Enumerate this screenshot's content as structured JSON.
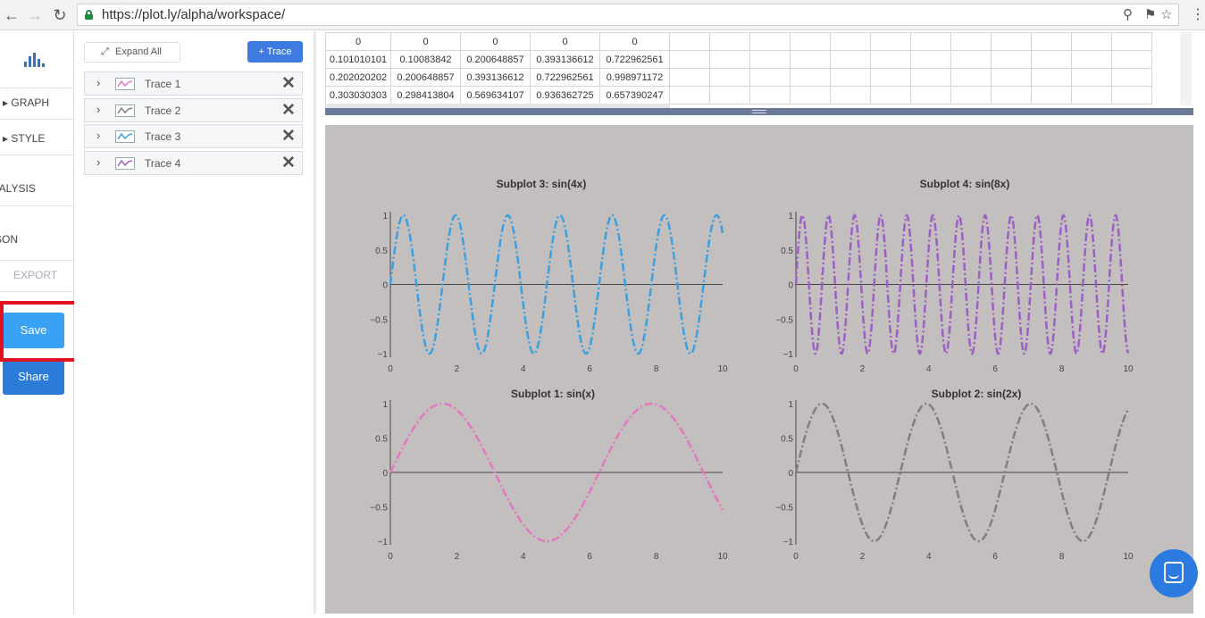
{
  "browser": {
    "url": "https://plot.ly/alpha/workspace/"
  },
  "sidebar": {
    "items": [
      {
        "label": "▸ GRAPH"
      },
      {
        "label": "▸ STYLE"
      },
      {
        "label": "ANALYSIS"
      },
      {
        "label": "JSON"
      },
      {
        "label": "EXPORT"
      }
    ],
    "save_label": "Save",
    "share_label": "Share"
  },
  "panel": {
    "expand_label": "Expand All",
    "add_trace_label": "+ Trace",
    "traces": [
      {
        "label": "Trace 1",
        "color": "#e377c2"
      },
      {
        "label": "Trace 2",
        "color": "#7f7f7f"
      },
      {
        "label": "Trace 3",
        "color": "#3aa0e0"
      },
      {
        "label": "Trace 4",
        "color": "#9b5fc6"
      }
    ]
  },
  "grid": {
    "rows": [
      [
        "0",
        "0",
        "0",
        "0",
        "0"
      ],
      [
        "0.101010101",
        "0.10083842",
        "0.200648857",
        "0.393136612",
        "0.722962561"
      ],
      [
        "0.202020202",
        "0.200648857",
        "0.393136612",
        "0.722962561",
        "0.998971172"
      ],
      [
        "0.303030303",
        "0.298413804",
        "0.569634107",
        "0.936362725",
        "0.657390247"
      ]
    ]
  },
  "chart_data": [
    {
      "type": "line",
      "title": "Subplot 3: sin(4x)",
      "function": "sin(4x)",
      "color": "#3aa0e0",
      "dash": "dashdot",
      "xlim": [
        0,
        10
      ],
      "ylim": [
        -1,
        1
      ],
      "xticks": [
        "0",
        "2",
        "4",
        "6",
        "8",
        "10"
      ],
      "yticks": [
        "1",
        "0.5",
        "0",
        "−0.5",
        "−1"
      ]
    },
    {
      "type": "line",
      "title": "Subplot 4: sin(8x)",
      "function": "sin(8x)",
      "color": "#9b5fc6",
      "dash": "dashdot",
      "xlim": [
        0,
        10
      ],
      "ylim": [
        -1,
        1
      ],
      "xticks": [
        "0",
        "2",
        "4",
        "6",
        "8",
        "10"
      ],
      "yticks": [
        "1",
        "0.5",
        "0",
        "−0.5",
        "−1"
      ]
    },
    {
      "type": "line",
      "title": "Subplot 1: sin(x)",
      "function": "sin(x)",
      "color": "#e377c2",
      "dash": "dashdot",
      "xlim": [
        0,
        10
      ],
      "ylim": [
        -1,
        1
      ],
      "xticks": [
        "0",
        "2",
        "4",
        "6",
        "8",
        "10"
      ],
      "yticks": [
        "1",
        "0.5",
        "0",
        "−0.5",
        "−1"
      ]
    },
    {
      "type": "line",
      "title": "Subplot 2: sin(2x)",
      "function": "sin(2x)",
      "color": "#7f7f7f",
      "dash": "dashdot",
      "xlim": [
        0,
        10
      ],
      "ylim": [
        -1,
        1
      ],
      "xticks": [
        "0",
        "2",
        "4",
        "6",
        "8",
        "10"
      ],
      "yticks": [
        "1",
        "0.5",
        "0",
        "−0.5",
        "−1"
      ]
    }
  ]
}
